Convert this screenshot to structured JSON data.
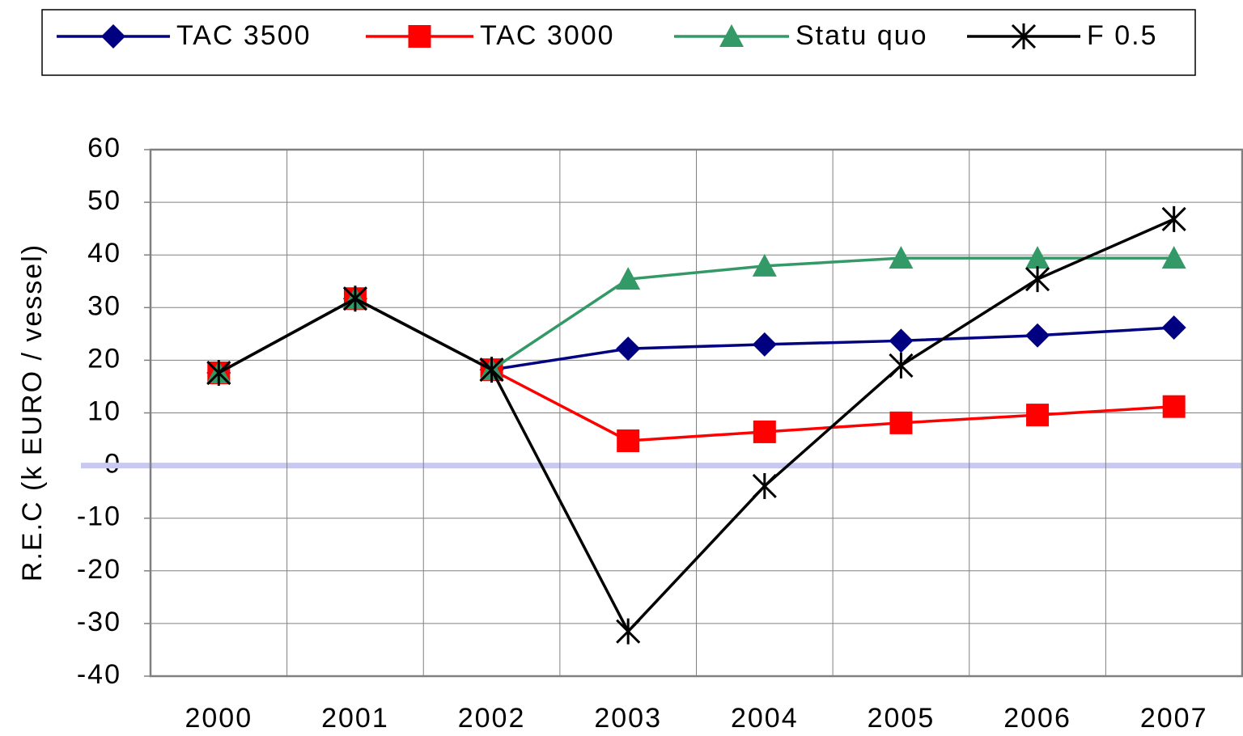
{
  "chart_data": {
    "type": "line",
    "ylabel": "R.E.C (k EURO / vessel)",
    "categories": [
      "2000",
      "2001",
      "2002",
      "2003",
      "2004",
      "2005",
      "2006",
      "2007"
    ],
    "series": [
      {
        "name": "TAC 3500",
        "color": "#000080",
        "marker": "diamond",
        "values": [
          17.6,
          31.7,
          18.2,
          22.2,
          23,
          23.7,
          24.7,
          26.2
        ]
      },
      {
        "name": "TAC 3000",
        "color": "#ff0000",
        "marker": "square",
        "values": [
          17.6,
          31.7,
          18.2,
          4.7,
          6.4,
          8.1,
          9.6,
          11.2
        ]
      },
      {
        "name": "Statu quo",
        "color": "#339966",
        "marker": "triangle",
        "values": [
          17.6,
          31.7,
          18.2,
          35.4,
          37.9,
          39.4,
          39.4,
          39.4
        ]
      },
      {
        "name": "F 0.5",
        "color": "#000000",
        "marker": "star",
        "values": [
          17.6,
          31.7,
          18.2,
          -31.5,
          -3.9,
          19,
          35.4,
          46.8
        ]
      }
    ],
    "ylim": [
      -40,
      60
    ],
    "yticks": [
      -40,
      -30,
      -20,
      -10,
      0,
      10,
      20,
      30,
      40,
      50,
      60
    ],
    "grid": true,
    "legend": "top"
  }
}
